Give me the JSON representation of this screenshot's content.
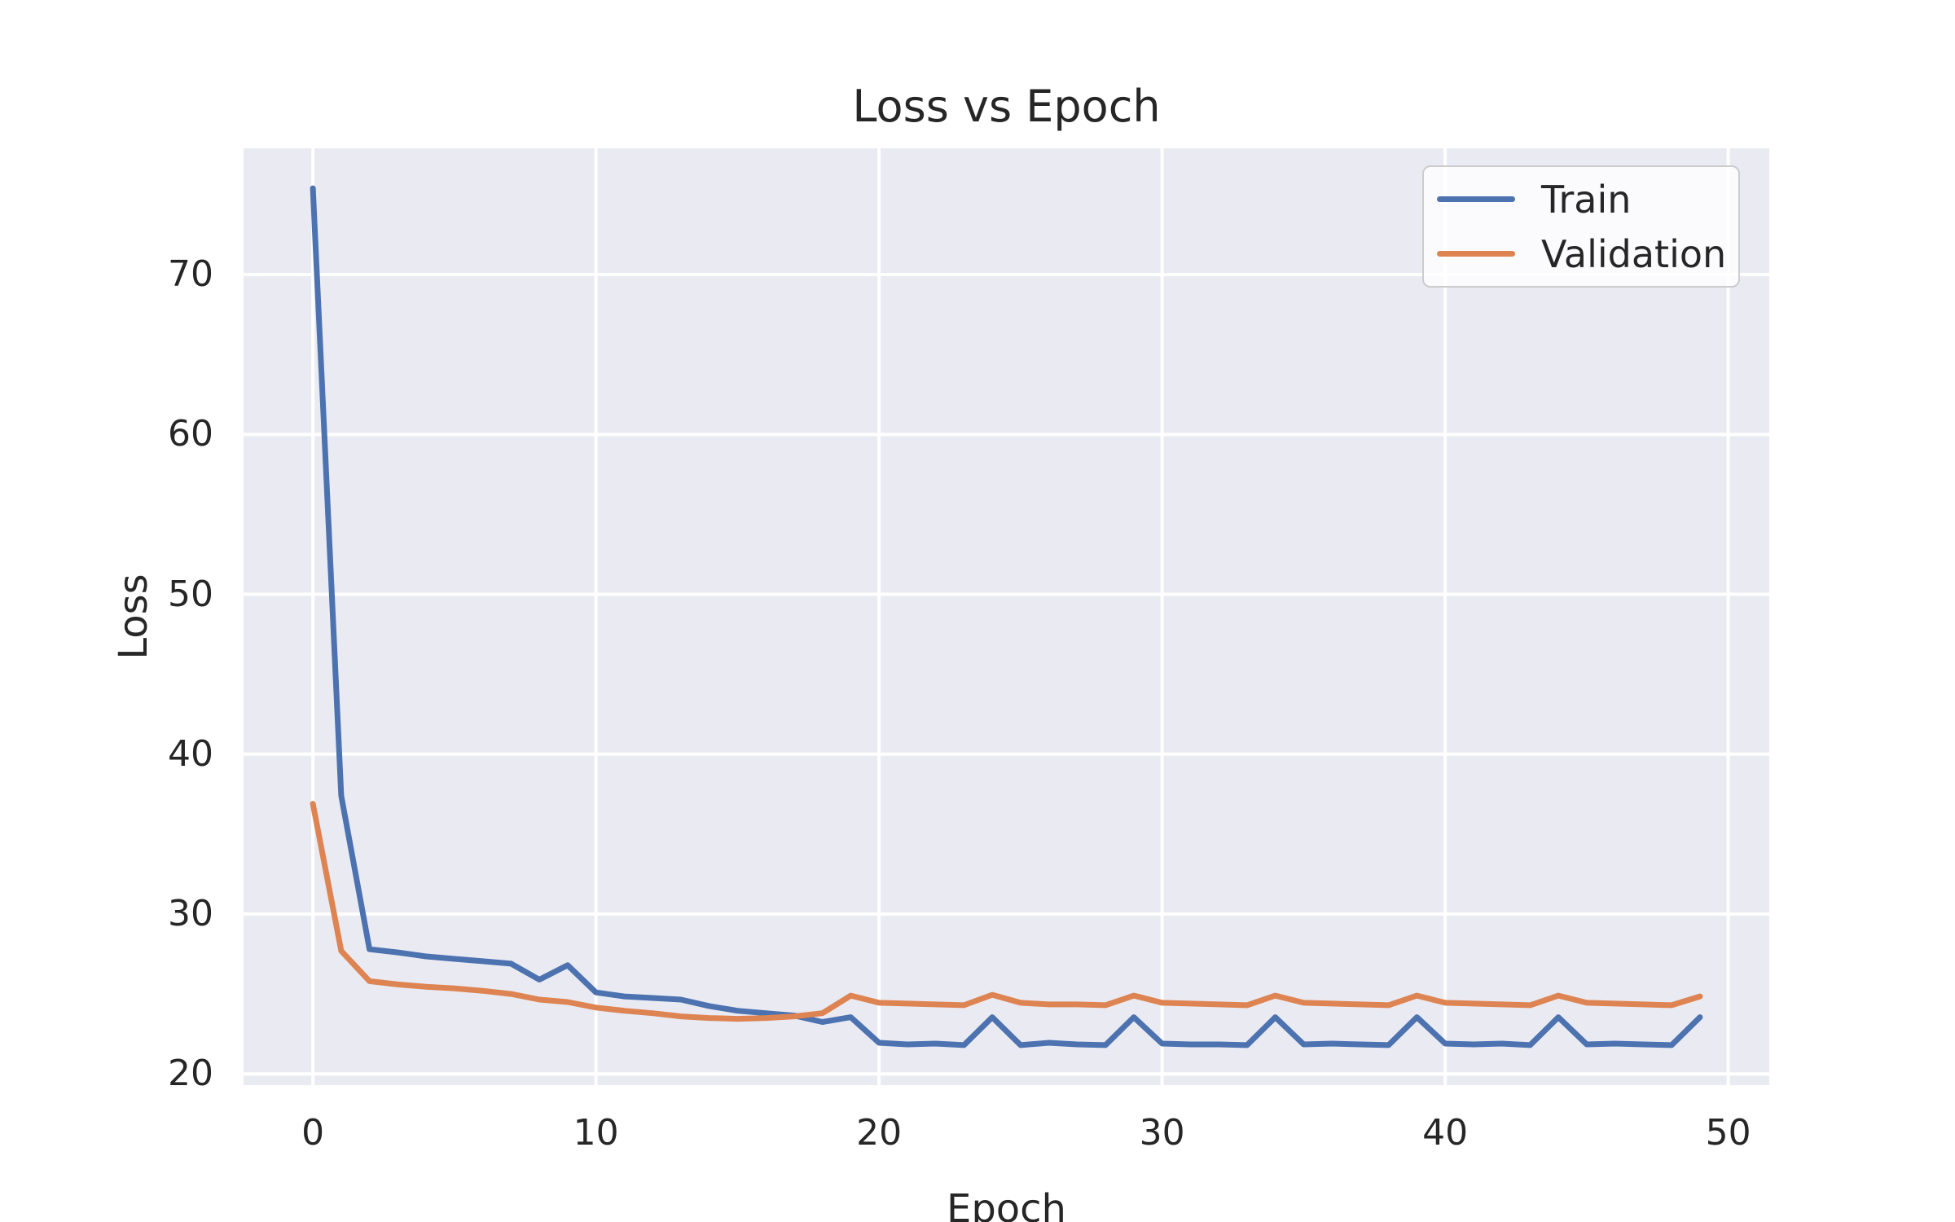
{
  "figure": {
    "background": "#ffffff",
    "plot_background": "#EAEAF2",
    "grid_color": "#FFFFFF",
    "text_color": "#262626",
    "legend_border_color": "#cccccc"
  },
  "chart_data": {
    "type": "line",
    "title": "Loss vs Epoch",
    "xlabel": "Epoch",
    "ylabel": "Loss",
    "x": [
      0,
      1,
      2,
      3,
      4,
      5,
      6,
      7,
      8,
      9,
      10,
      11,
      12,
      13,
      14,
      15,
      16,
      17,
      18,
      19,
      20,
      21,
      22,
      23,
      24,
      25,
      26,
      27,
      28,
      29,
      30,
      31,
      32,
      33,
      34,
      35,
      36,
      37,
      38,
      39,
      40,
      41,
      42,
      43,
      44,
      45,
      46,
      47,
      48,
      49
    ],
    "series": [
      {
        "name": "Train",
        "color": "#4C72B0",
        "values": [
          75.4,
          37.4,
          27.8,
          27.6,
          27.35,
          27.2,
          27.05,
          26.9,
          25.9,
          26.8,
          25.1,
          24.85,
          24.75,
          24.65,
          24.25,
          23.95,
          23.8,
          23.65,
          23.25,
          23.55,
          21.95,
          21.85,
          21.9,
          21.8,
          23.55,
          21.8,
          21.95,
          21.85,
          21.8,
          23.55,
          21.9,
          21.85,
          21.85,
          21.8,
          23.55,
          21.85,
          21.9,
          21.85,
          21.8,
          23.55,
          21.9,
          21.85,
          21.9,
          21.8,
          23.55,
          21.85,
          21.9,
          21.85,
          21.8,
          23.55
        ]
      },
      {
        "name": "Validation",
        "color": "#DD8452",
        "values": [
          36.9,
          27.7,
          25.8,
          25.6,
          25.45,
          25.35,
          25.2,
          25.0,
          24.65,
          24.5,
          24.15,
          23.95,
          23.8,
          23.6,
          23.5,
          23.45,
          23.5,
          23.6,
          23.8,
          24.9,
          24.45,
          24.4,
          24.35,
          24.3,
          24.95,
          24.45,
          24.35,
          24.35,
          24.3,
          24.9,
          24.45,
          24.4,
          24.35,
          24.3,
          24.9,
          24.45,
          24.4,
          24.35,
          24.3,
          24.9,
          24.45,
          24.4,
          24.35,
          24.3,
          24.9,
          24.45,
          24.4,
          24.35,
          24.3,
          24.85
        ]
      }
    ],
    "x_ticks": [
      0,
      10,
      20,
      30,
      40,
      50
    ],
    "y_ticks": [
      20,
      30,
      40,
      50,
      60,
      70
    ],
    "xlim": [
      -2.45,
      51.45
    ],
    "ylim": [
      19.3,
      77.9
    ],
    "grid": true,
    "legend_position": "upper right"
  }
}
